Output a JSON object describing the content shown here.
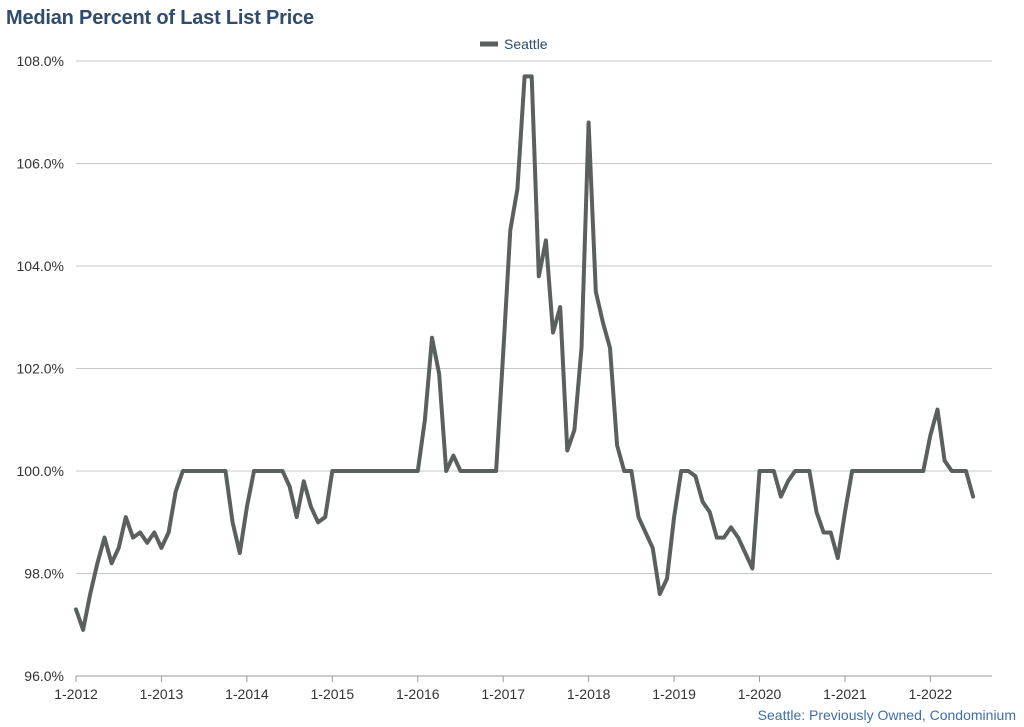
{
  "chart_data": {
    "type": "line",
    "title": "Median Percent of Last List Price",
    "source_note": "Seattle: Previously Owned, Condominium",
    "xlabel": "",
    "ylabel": "",
    "x_start": "2012-01",
    "x_end": "2022-09",
    "x_ticks": [
      "1-2012",
      "1-2013",
      "1-2014",
      "1-2015",
      "1-2016",
      "1-2017",
      "1-2018",
      "1-2019",
      "1-2020",
      "1-2021",
      "1-2022"
    ],
    "y_ticks": [
      "96.0%",
      "98.0%",
      "100.0%",
      "102.0%",
      "104.0%",
      "106.0%",
      "108.0%"
    ],
    "ylim": [
      96,
      108
    ],
    "grid": true,
    "legend_position": "top-center",
    "colors": {
      "series": "#5b5f5e",
      "grid": "#c8c8c8",
      "title": "#2f4b6e",
      "source": "#3f6fa8"
    },
    "series": [
      {
        "name": "Seattle",
        "values": [
          97.3,
          96.9,
          97.6,
          98.2,
          98.7,
          98.2,
          98.5,
          99.1,
          98.7,
          98.8,
          98.6,
          98.8,
          98.5,
          98.8,
          99.6,
          100.0,
          100.0,
          100.0,
          100.0,
          100.0,
          100.0,
          100.0,
          99.0,
          98.4,
          99.3,
          100.0,
          100.0,
          100.0,
          100.0,
          100.0,
          99.7,
          99.1,
          99.8,
          99.3,
          99.0,
          99.1,
          100.0,
          100.0,
          100.0,
          100.0,
          100.0,
          100.0,
          100.0,
          100.0,
          100.0,
          100.0,
          100.0,
          100.0,
          100.0,
          101.0,
          102.6,
          101.9,
          100.0,
          100.3,
          100.0,
          100.0,
          100.0,
          100.0,
          100.0,
          100.0,
          102.3,
          104.7,
          105.5,
          107.7,
          107.7,
          103.8,
          104.5,
          102.7,
          103.2,
          100.4,
          100.8,
          102.4,
          106.8,
          103.5,
          102.9,
          102.4,
          100.5,
          100.0,
          100.0,
          99.1,
          98.8,
          98.5,
          97.6,
          97.9,
          99.1,
          100.0,
          100.0,
          99.9,
          99.4,
          99.2,
          98.7,
          98.7,
          98.9,
          98.7,
          98.4,
          98.1,
          100.0,
          100.0,
          100.0,
          99.5,
          99.8,
          100.0,
          100.0,
          100.0,
          99.2,
          98.8,
          98.8,
          98.3,
          99.2,
          100.0,
          100.0,
          100.0,
          100.0,
          100.0,
          100.0,
          100.0,
          100.0,
          100.0,
          100.0,
          100.0,
          100.7,
          101.2,
          100.2,
          100.0,
          100.0,
          100.0,
          99.5
        ]
      }
    ]
  }
}
